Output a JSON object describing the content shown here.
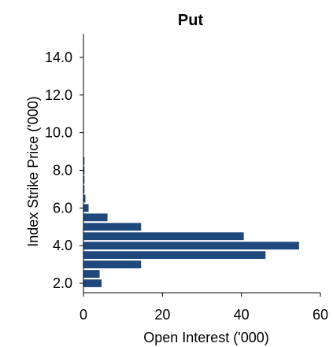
{
  "chart_data": {
    "type": "bar",
    "orientation": "horizontal",
    "title": "Put",
    "xlabel": "Open Interest ('000)",
    "ylabel": "Index Strike Price ('000)",
    "xlim": [
      0,
      60
    ],
    "ylim": [
      1.5,
      15.25
    ],
    "x_ticks": [
      0,
      20,
      40,
      60
    ],
    "x_tick_labels": [
      "0",
      "20",
      "40",
      "60"
    ],
    "y_ticks": [
      2.0,
      4.0,
      6.0,
      8.0,
      10.0,
      12.0,
      14.0
    ],
    "y_tick_labels": [
      "2.0",
      "4.0",
      "6.0",
      "8.0",
      "10.0",
      "12.0",
      "14.0"
    ],
    "bar_color": "#1f497d",
    "grid": false,
    "legend": "none",
    "categories": [
      2.0,
      2.5,
      3.0,
      3.5,
      4.0,
      4.5,
      5.0,
      5.5,
      6.0,
      6.5,
      7.0,
      7.5,
      8.0,
      8.5,
      9.0,
      9.5,
      10.0,
      10.5,
      11.0,
      11.5,
      12.0,
      12.5,
      13.0,
      13.5,
      14.0,
      14.5
    ],
    "values": [
      4.5,
      4.0,
      14.5,
      46.0,
      54.5,
      40.5,
      14.5,
      6.0,
      1.2,
      0.4,
      0.1,
      0.05,
      0.05,
      0.05,
      0,
      0,
      0,
      0,
      0,
      0,
      0,
      0,
      0,
      0,
      0,
      0
    ]
  }
}
